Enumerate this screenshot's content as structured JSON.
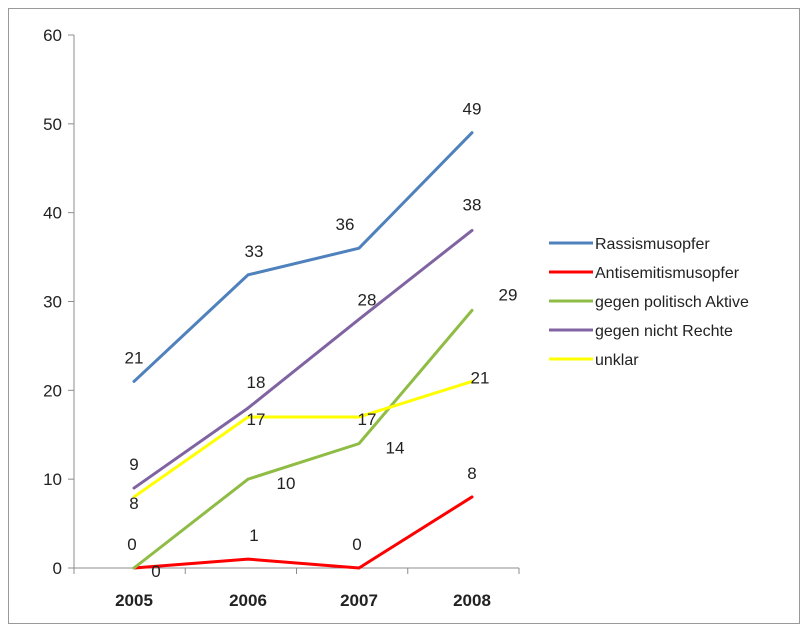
{
  "chart_data": {
    "type": "line",
    "title": "",
    "xlabel": "",
    "ylabel": "",
    "categories": [
      "2005",
      "2006",
      "2007",
      "2008"
    ],
    "ylim": [
      0,
      60
    ],
    "yticks": [
      0,
      10,
      20,
      30,
      40,
      50,
      60
    ],
    "grid": false,
    "legend_position": "right",
    "series": [
      {
        "name": "Rassismusopfer",
        "values": [
          21,
          33,
          36,
          49
        ],
        "color": "#4f81bd"
      },
      {
        "name": "Antisemitismusopfer",
        "values": [
          0,
          1,
          0,
          8
        ],
        "color": "#ff0000"
      },
      {
        "name": "gegen politisch Aktive",
        "values": [
          0,
          10,
          14,
          29
        ],
        "color": "#8fbc45"
      },
      {
        "name": "gegen nicht Rechte",
        "values": [
          9,
          18,
          28,
          38
        ],
        "color": "#8064a2"
      },
      {
        "name": "unklar",
        "values": [
          8,
          17,
          17,
          21
        ],
        "color": "#ffff00"
      }
    ]
  }
}
